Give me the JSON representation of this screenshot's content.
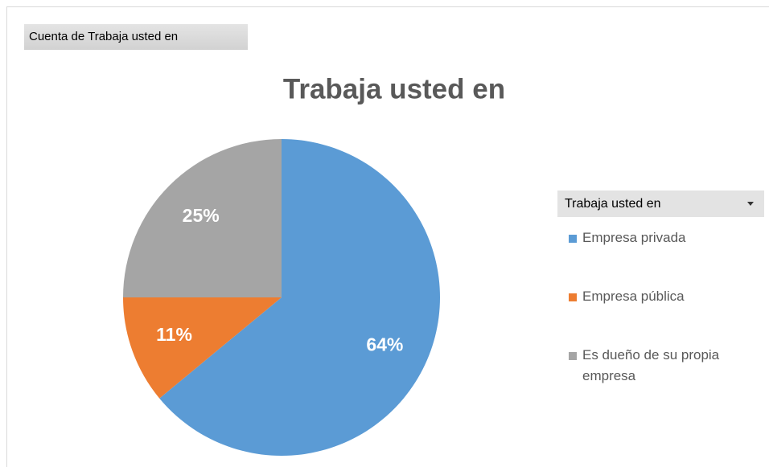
{
  "chart_data": {
    "type": "pie",
    "field_button": "Cuenta de Trabaja usted en",
    "title": "Trabaja usted en",
    "legend_title": "Trabaja usted en",
    "categories": [
      "Empresa privada",
      "Empresa pública",
      "Es dueño de su propia empresa"
    ],
    "values": [
      64,
      11,
      25
    ],
    "value_labels": [
      "64%",
      "11%",
      "25%"
    ],
    "colors": [
      "#5b9bd5",
      "#ed7d31",
      "#a5a5a5"
    ]
  }
}
